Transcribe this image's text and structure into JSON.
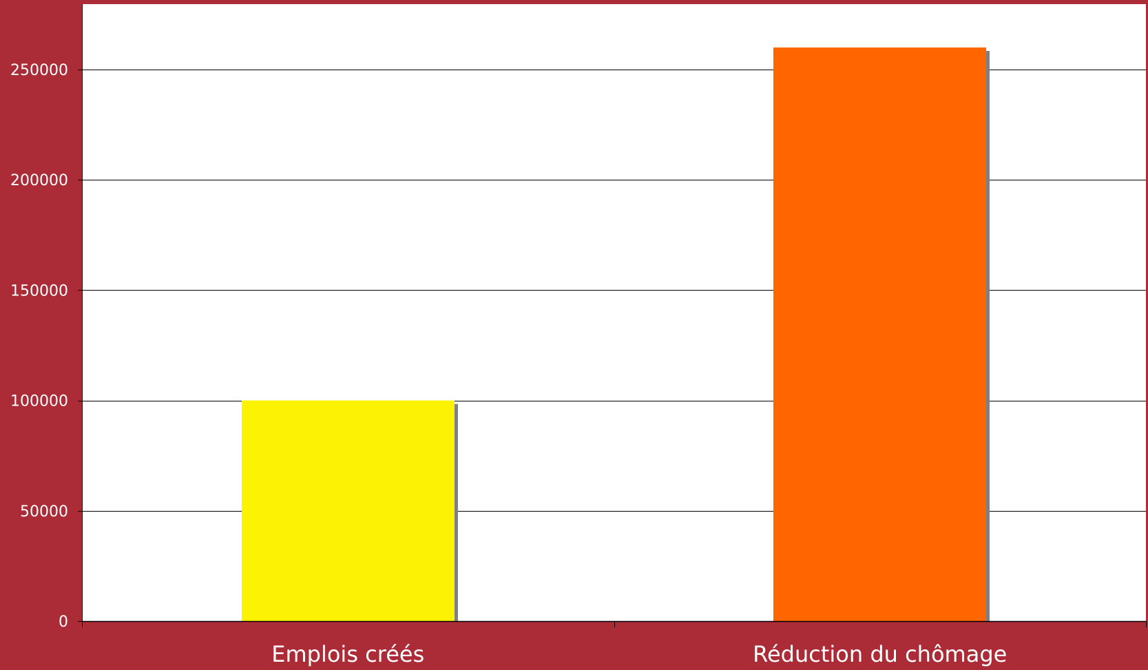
{
  "chart_data": {
    "type": "bar",
    "categories": [
      "Emplois créés",
      "Réduction du chômage"
    ],
    "values": [
      100000,
      260000
    ],
    "colors": [
      "#FCF302",
      "#FF6600"
    ],
    "yticks": [
      0,
      50000,
      100000,
      150000,
      200000,
      250000
    ],
    "ylim": [
      0,
      280000
    ],
    "grid": true,
    "legend": "none",
    "background": "#AB2B37",
    "plot_background": "#FFFFFF",
    "shadow_color": "#808080",
    "label_color": "#FFFFFF",
    "gridline_color": "#000000"
  }
}
